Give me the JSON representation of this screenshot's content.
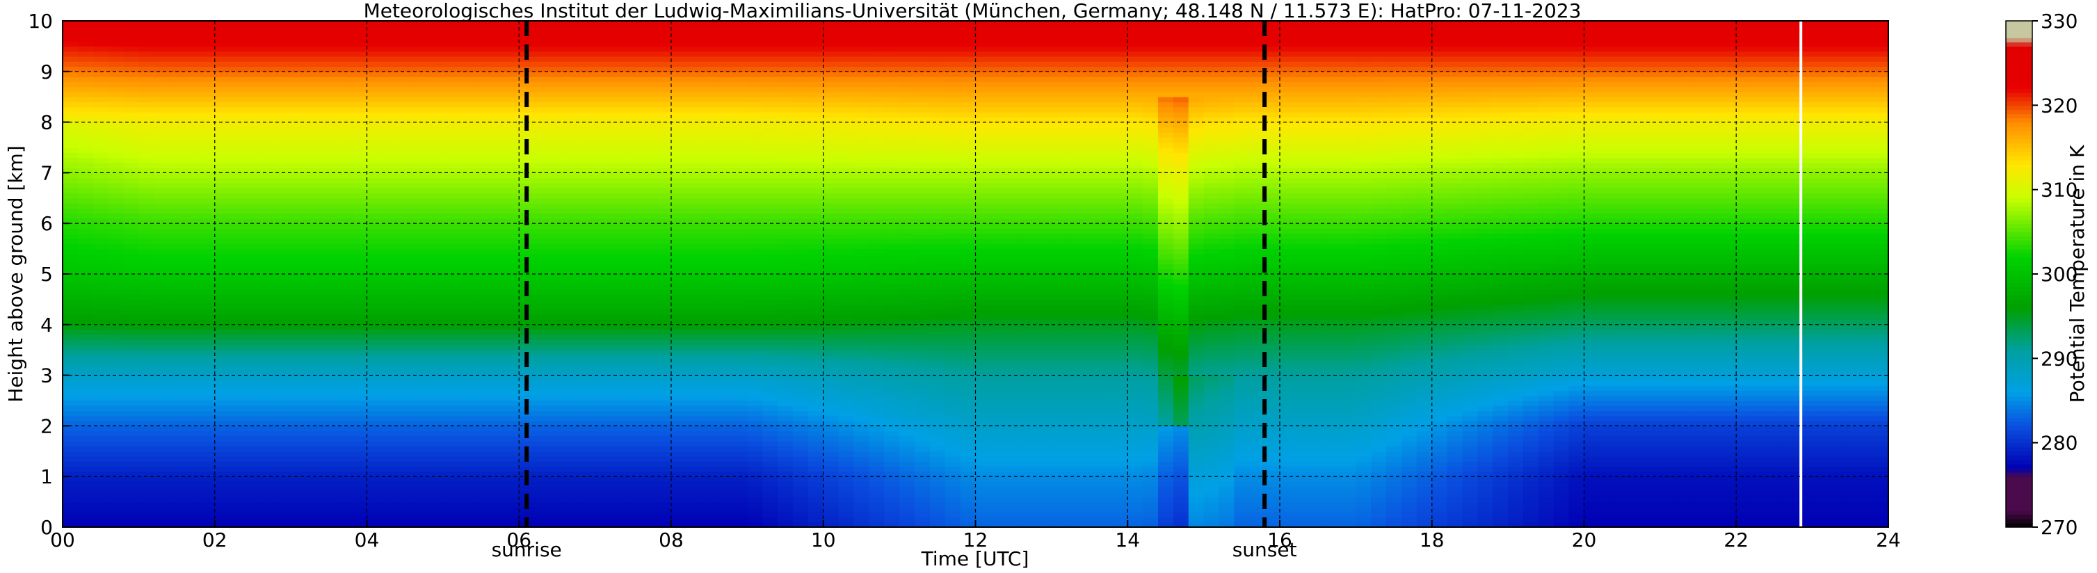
{
  "chart_data": {
    "type": "heatmap",
    "title": "Meteorologisches Institut der Ludwig-Maximilians-Universität (München, Germany; 48.148 N / 11.573 E):    HatPro: 07-11-2023",
    "xlabel": "Time [UTC]",
    "ylabel": "Height above ground [km]",
    "xlim": [
      0,
      24
    ],
    "ylim": [
      0,
      10
    ],
    "x_ticks": [
      "00",
      "02",
      "04",
      "06",
      "08",
      "10",
      "12",
      "14",
      "16",
      "18",
      "20",
      "22",
      "24"
    ],
    "y_ticks": [
      "0",
      "1",
      "2",
      "3",
      "4",
      "5",
      "6",
      "7",
      "8",
      "9",
      "10"
    ],
    "grid": true,
    "colorbar": {
      "label": "Potential Temperature in K",
      "range": [
        270,
        330
      ],
      "ticks": [
        "270",
        "280",
        "290",
        "300",
        "310",
        "320",
        "330"
      ]
    },
    "field": {
      "description": "Potential temperature; rises with height from ~276 K near ground to >325 K at 10 km",
      "profile_height_km": [
        0,
        1,
        2,
        3,
        4,
        5,
        6,
        7,
        8,
        9,
        10
      ],
      "profile_K_morning": [
        277,
        279,
        283,
        288,
        296,
        301,
        304,
        308,
        312,
        319,
        325
      ],
      "profile_K_afternoon": [
        283,
        285,
        288,
        291,
        295,
        300,
        304,
        308,
        313,
        319,
        325
      ],
      "profile_K_evening": [
        277,
        278,
        281,
        287,
        293,
        298,
        303,
        307,
        312,
        319,
        325
      ],
      "rain_event_time": 14.6
    },
    "markers": [
      {
        "time": 6.1,
        "label": "sunrise"
      },
      {
        "time": 15.8,
        "label": "sunset"
      }
    ],
    "data_gap_time": 22.85,
    "colors": {
      "colormap": [
        "#000000",
        "#4b0a4b",
        "#0000b4",
        "#0a50e0",
        "#00a0e6",
        "#00a0a0",
        "#00a000",
        "#00d200",
        "#c8ff00",
        "#ffe600",
        "#ff8c00",
        "#e60000",
        "#c8c8a0"
      ]
    }
  }
}
